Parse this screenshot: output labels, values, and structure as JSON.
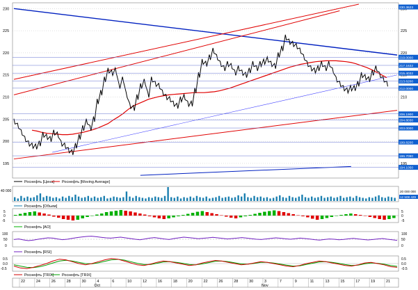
{
  "colors": {
    "price": "#000000",
    "ma": "#e00000",
    "channel": "#e00000",
    "trend": "#0020c0",
    "thin_trend": "#4040ff",
    "volume": "#1a7fb0",
    "ao_pos": "#00b000",
    "ao_neg": "#e00000",
    "rsi": "#7020c0",
    "trix": "#d00000",
    "trix_signal": "#00a000",
    "flag_bg": "#1060d0",
    "grid": "#b0b0b0",
    "axis_text": "#000000"
  },
  "chart_data": [
    {
      "type": "line",
      "panel": "price",
      "ylim": [
        192,
        231
      ],
      "y_ticks": [
        "230",
        "225",
        "220",
        "215",
        "210",
        "205",
        "200",
        "195"
      ],
      "x_ticks": [
        "22",
        "24",
        "26",
        "28",
        "30",
        "4",
        "6",
        "10",
        "12",
        "16",
        "18",
        "20",
        "22",
        "26",
        "28",
        "30",
        "3",
        "7",
        "9",
        "11",
        "13",
        "15",
        "17",
        "19",
        "21"
      ],
      "month_labels": [
        {
          "text": "Oct",
          "after_tick": 5
        },
        {
          "text": "Nov",
          "after_tick": 16
        }
      ],
      "price_flags": [
        "230.3623",
        "219.0000",
        "217.1632",
        "215.4032",
        "213.6200",
        "212.0000",
        "206.1900",
        "204.8030",
        "203.0000",
        "199.8200",
        "196.7090",
        "194.1050"
      ],
      "series": [
        {
          "name": "Роснефть [Цена]",
          "values": [
            204.5,
            203.5,
            202,
            200.5,
            199.5,
            199,
            198.8,
            199.5,
            201.5,
            201,
            200.5,
            202,
            201.5,
            199.5,
            199,
            198,
            197.5,
            199,
            201,
            203,
            204.5,
            203,
            205,
            209,
            211,
            214,
            216,
            215.5,
            216,
            212.5,
            214,
            210.5,
            208,
            207.5,
            210,
            212.5,
            213.5,
            210.5,
            214,
            213,
            212.5,
            211,
            210,
            209.5,
            208.5,
            208,
            209.5,
            210,
            208.5,
            208.5,
            211.5,
            215,
            218,
            217.5,
            219,
            220.5,
            219,
            217.5,
            216.5,
            217.5,
            217,
            215.5,
            216.5,
            215.5,
            215,
            216,
            217.5,
            216.5,
            217.5,
            218,
            218.5,
            217.5,
            217,
            219.5,
            221,
            223.5,
            222.5,
            222,
            221.5,
            220.5,
            219,
            217.5,
            216.5,
            216,
            216.5,
            217.5,
            216.5,
            217.5,
            216,
            214,
            213,
            212,
            211.5,
            212,
            212,
            213,
            215,
            214.5,
            214,
            215.5,
            216.5,
            215,
            214,
            213
          ]
        },
        {
          "name": "Роснефть [Moving Average]",
          "values": [
            202.5,
            202.3,
            202,
            201.8,
            201.7,
            201.6,
            201.5,
            201.5,
            201.6,
            201.8,
            202,
            202.3,
            202.6,
            203,
            203.5,
            204,
            204.8,
            205.5,
            206.3,
            207.2,
            208,
            208.5,
            209,
            209.5,
            209.8,
            210.1,
            210.3,
            210.5,
            210.6,
            210.7,
            210.8,
            210.9,
            211,
            211,
            211,
            211.1,
            211.2,
            211.4,
            211.7,
            212,
            212.4,
            212.8,
            213.2,
            213.6,
            214,
            214.4,
            214.8,
            215.2,
            215.6,
            216,
            216.4,
            216.8,
            217.1,
            217.4,
            217.6,
            217.8,
            218,
            218.1,
            218.2,
            218.2,
            218.2,
            218.1,
            218,
            217.8,
            217.5,
            217.1,
            216.7,
            216.2,
            215.6,
            215,
            214.4
          ]
        },
        {
          "name": "Роснефть [Объем]",
          "values": [
            6,
            4,
            8,
            5,
            7,
            5,
            6,
            9,
            12,
            6,
            8,
            7,
            5,
            6,
            4,
            7,
            5,
            8,
            6,
            10,
            7,
            5,
            6,
            8,
            5,
            7,
            5,
            6,
            8,
            4,
            5,
            7,
            6,
            5,
            6,
            15,
            7,
            5,
            8,
            6,
            5,
            4,
            6,
            5,
            7,
            6,
            5,
            8,
            22,
            6,
            5,
            7,
            4,
            6,
            5,
            7,
            5,
            8,
            6,
            5,
            7,
            4,
            5,
            6,
            8,
            5,
            6,
            7,
            5,
            6,
            9,
            7,
            12,
            6,
            5,
            8,
            6,
            7,
            5,
            6,
            4,
            5,
            7,
            9,
            6,
            5,
            8,
            6,
            5,
            7,
            10,
            6,
            5,
            7,
            5,
            6,
            8,
            5,
            6,
            7,
            5,
            6,
            8,
            5,
            6,
            7,
            5,
            8,
            6,
            5,
            4,
            6,
            5,
            7,
            9,
            6,
            5,
            7,
            6,
            5
          ]
        },
        {
          "name": "Роснефть [AO]",
          "values": [
            0.2,
            0.5,
            0.8,
            1,
            1.2,
            0.9,
            0.6,
            0.3,
            -0.3,
            -0.6,
            -1,
            -1.2,
            -1.4,
            -1.2,
            -0.8,
            -0.4,
            -0.1,
            0.3,
            0.6,
            1,
            1.2,
            1.4,
            1.6,
            1.4,
            1.2,
            0.9,
            0.6,
            0.3,
            -0.2,
            -0.5,
            -0.8,
            -1,
            -0.8,
            -0.5,
            -0.2,
            0.2,
            0.5,
            0.8,
            1.1,
            1.3,
            1,
            0.7,
            0.4,
            0.1,
            -0.3,
            -0.6,
            -0.8,
            -0.5,
            -0.2,
            0.2,
            0.5,
            0.8,
            1.1,
            1.3,
            1.5,
            1.3,
            1,
            0.7,
            0.4,
            0.1,
            -0.2,
            -0.5,
            -0.9,
            -1.2,
            -1,
            -0.7,
            -0.4,
            -0.1,
            0.2,
            0.4,
            0.6,
            0.4,
            0.2,
            -0.1,
            -0.4,
            -0.7,
            -1,
            -1.2,
            -1,
            -0.7
          ]
        },
        {
          "name": "Роснефть [RSI]",
          "values": [
            48,
            52,
            45,
            40,
            44,
            50,
            55,
            60,
            58,
            52,
            47,
            50,
            56,
            62,
            66,
            70,
            72,
            68,
            64,
            60,
            58,
            62,
            65,
            60,
            55,
            50,
            46,
            52,
            58,
            62,
            57,
            52,
            48,
            55,
            60,
            65,
            62,
            58,
            54,
            57,
            60,
            64,
            60,
            56,
            52,
            55,
            58,
            62,
            58,
            54,
            50,
            48,
            52,
            56,
            60,
            57,
            53,
            50,
            54,
            58,
            55,
            51,
            47,
            44,
            48,
            52,
            50,
            46,
            49,
            53,
            56,
            52,
            48,
            45,
            48,
            52,
            55,
            50,
            46,
            42
          ]
        },
        {
          "name": "Роснефть [TRIX]",
          "values": [
            -0.2,
            -0.35,
            -0.4,
            -0.3,
            -0.15,
            0,
            0.2,
            0.35,
            0.3,
            0.15,
            0,
            -0.1,
            0,
            0.15,
            0.3,
            0.4,
            0.35,
            0.2,
            0.05,
            -0.1,
            -0.15,
            -0.05,
            0.1,
            0.2,
            0.15,
            0.05,
            -0.05,
            -0.15,
            -0.1,
            0.05,
            0.15,
            0.25,
            0.2,
            0.1,
            0,
            -0.1,
            -0.05,
            0.05,
            0.15,
            0.1,
            0,
            -0.1,
            -0.2,
            -0.25,
            -0.15,
            0,
            0.1,
            0.2,
            0.15,
            0.05,
            -0.05,
            -0.15,
            -0.2,
            -0.1,
            0.05,
            0.1,
            0,
            -0.1,
            -0.25,
            -0.3
          ]
        },
        {
          "name": "Роснефть [TRIX] Signal",
          "values": [
            -0.1,
            -0.2,
            -0.3,
            -0.32,
            -0.25,
            -0.12,
            0.05,
            0.2,
            0.26,
            0.2,
            0.1,
            0,
            -0.02,
            0.06,
            0.18,
            0.3,
            0.34,
            0.28,
            0.15,
            0.02,
            -0.08,
            -0.08,
            0.02,
            0.12,
            0.15,
            0.1,
            0.02,
            -0.08,
            -0.1,
            -0.03,
            0.08,
            0.18,
            0.2,
            0.15,
            0.06,
            -0.03,
            -0.05,
            0.01,
            0.1,
            0.1,
            0.04,
            -0.04,
            -0.12,
            -0.2,
            -0.18,
            -0.08,
            0.03,
            0.13,
            0.15,
            0.1,
            0.02,
            -0.08,
            -0.15,
            -0.12,
            -0.02,
            0.05,
            0.02,
            -0.05,
            -0.15,
            -0.22
          ]
        }
      ]
    }
  ],
  "panels": {
    "volume": {
      "legend": "Роснефть [Объем]",
      "top_label": "40 000",
      "right_labels": [
        "20 000 000",
        "12 508 429"
      ]
    },
    "ao": {
      "legend": "Роснефть [AO]",
      "right_labels": [
        "5",
        "0",
        "-5"
      ],
      "left_labels": [
        "5",
        "0",
        "-5"
      ]
    },
    "rsi": {
      "legend": "Роснефть [RSI]",
      "right_labels": [
        "100",
        "50",
        "0"
      ],
      "left_labels": [
        "100",
        "50",
        "0"
      ]
    },
    "trix": {
      "legend_a": "Роснефть [TRIX]",
      "legend_b": "Роснефть [TRIX]",
      "right_labels": [
        "0.5",
        "0.0",
        "-0.5"
      ],
      "left_labels": [
        "0.5",
        "0.0",
        "-0.5"
      ]
    }
  },
  "legend": {
    "price": "Роснефть [Цена]",
    "ma": "Роснефть [Moving Average]"
  }
}
